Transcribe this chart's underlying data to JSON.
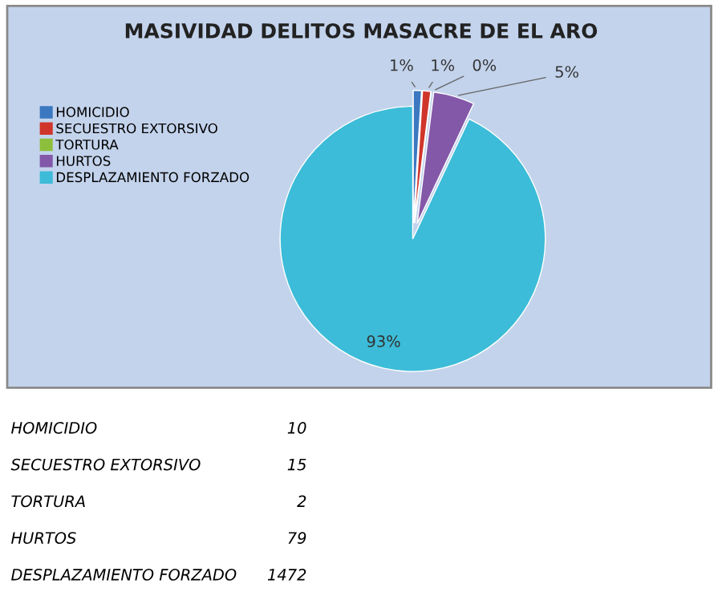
{
  "chart_data": {
    "type": "pie",
    "title": "MASIVIDAD DELITOS MASACRE DE EL ARO",
    "categories": [
      "HOMICIDIO",
      "SECUESTRO EXTORSIVO",
      "TORTURA",
      "HURTOS",
      "DESPLAZAMIENTO FORZADO"
    ],
    "values": [
      1,
      1,
      0,
      5,
      93
    ],
    "colors": [
      "#3b78c0",
      "#d0352c",
      "#8dbf3c",
      "#8458a8",
      "#3cbcd8"
    ],
    "value_labels": [
      "1%",
      "1%",
      "0%",
      "5%",
      "93%"
    ],
    "legend": "left",
    "annotations": [
      "HOMICIDIO",
      "10",
      "SECUESTRO EXTORSIVO",
      "15",
      "TORTURA",
      "2",
      "HURTOS",
      "79",
      "DESPLAZAMIENTO FORZADO",
      "1472"
    ]
  }
}
